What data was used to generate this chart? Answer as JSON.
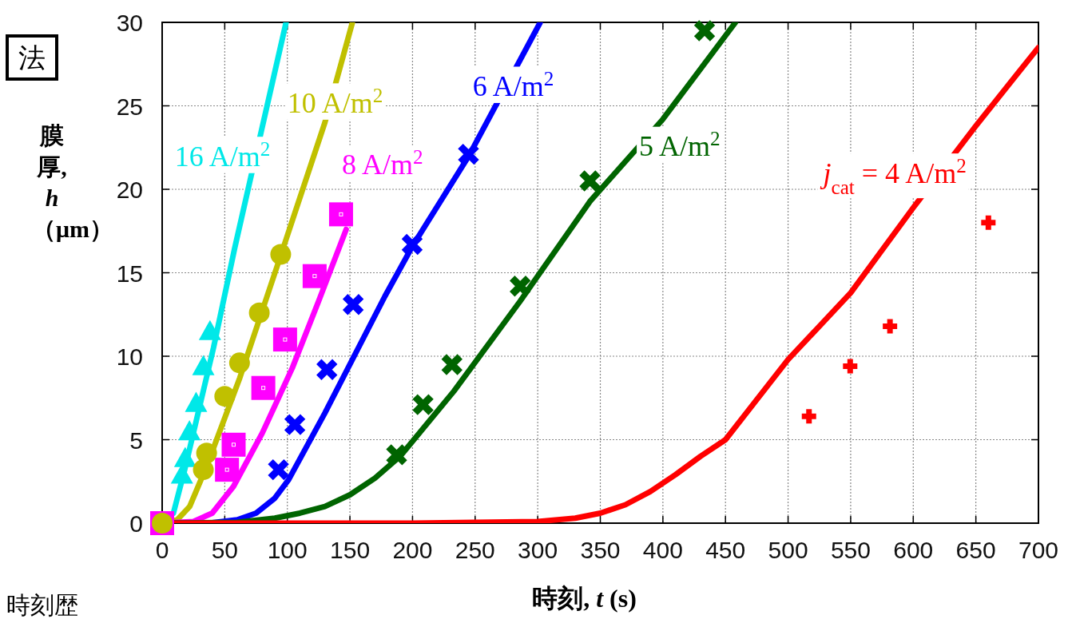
{
  "chart_data": {
    "type": "line",
    "xlabel": "時刻, *t* (s)",
    "ylabel": "膜厚, *h* （μm）",
    "annotations": [
      "法",
      "時刻歴"
    ],
    "xlim": [
      0,
      700
    ],
    "ylim": [
      0,
      30
    ],
    "xticks": [
      0,
      50,
      100,
      150,
      200,
      250,
      300,
      350,
      400,
      450,
      500,
      550,
      600,
      650,
      700
    ],
    "yticks": [
      0,
      5,
      10,
      15,
      20,
      25,
      30
    ],
    "grid": true,
    "series": [
      {
        "name": "16 A/m$^{2}$",
        "color": "#00e8e8",
        "line_style": "solid",
        "marker": "none",
        "x": [
          0,
          9,
          18,
          41,
          58,
          99
        ],
        "values": [
          0,
          0.6,
          3.2,
          10.5,
          16.5,
          30
        ]
      },
      {
        "name": "10 A/m$^{2}$",
        "color": "#c0c000",
        "line_style": "solid",
        "marker": "none",
        "x": [
          0,
          12,
          22,
          35.5,
          62,
          95,
          130,
          152
        ],
        "values": [
          0,
          0.2,
          1.0,
          3.4,
          8.7,
          16.1,
          24,
          30
        ]
      },
      {
        "name": "8 A/m$^{2}$",
        "color": "#ff00ff",
        "line_style": "solid",
        "marker": "none",
        "x": [
          0,
          25,
          40,
          57,
          80,
          104,
          125,
          147
        ],
        "values": [
          0,
          0.1,
          0.6,
          2.2,
          5.4,
          9.3,
          13.3,
          17.6
        ]
      },
      {
        "name": "6 A/m$^{2}$",
        "color": "#0000ff",
        "line_style": "solid",
        "marker": "none",
        "x": [
          0,
          40,
          60,
          75,
          90,
          101,
          130,
          178,
          200,
          245,
          302
        ],
        "values": [
          0,
          0.02,
          0.2,
          0.6,
          1.5,
          2.6,
          6.6,
          13.6,
          16.6,
          22.0,
          30
        ]
      },
      {
        "name": "5 A/m$^{2}$",
        "color": "#006400",
        "line_style": "solid",
        "marker": "none",
        "x": [
          0,
          60,
          90,
          110,
          130,
          150,
          170,
          190,
          233,
          286,
          342,
          400,
          458
        ],
        "values": [
          0,
          0.05,
          0.3,
          0.6,
          1.0,
          1.7,
          2.7,
          4.0,
          7.9,
          13.3,
          19.3,
          24.2,
          30
        ]
      },
      {
        "name": "*j*$_{cat}$ = 4 A/m$^{2}$",
        "color": "#ff0000",
        "line_style": "solid",
        "marker": "none",
        "x": [
          0,
          200,
          300,
          330,
          350,
          370,
          390,
          410,
          430,
          450,
          500,
          550,
          600,
          650,
          700
        ],
        "values": [
          0,
          0,
          0.1,
          0.3,
          0.6,
          1.1,
          1.9,
          2.9,
          4.0,
          5.0,
          9.8,
          13.8,
          18.9,
          23.8,
          28.5
        ]
      },
      {
        "type": "scatter",
        "color": "#00e8e8",
        "marker": "triangle",
        "x": [
          15.8,
          18.4,
          21.8,
          27.1,
          32.9,
          38.2
        ],
        "values": [
          2.9,
          3.9,
          5.5,
          7.2,
          9.4,
          11.5
        ]
      },
      {
        "type": "scatter",
        "color": "#ff00ff",
        "marker": "square",
        "x": [
          0,
          51.8,
          57.1,
          80.8,
          98.2,
          121.8,
          142.9
        ],
        "values": [
          0,
          3.2,
          4.7,
          8.1,
          11.0,
          14.8,
          18.5
        ]
      },
      {
        "type": "scatter",
        "color": "#c0c000",
        "marker": "circle",
        "x": [
          0,
          32.9,
          35.5,
          50,
          61.8,
          77.6,
          94.7
        ],
        "values": [
          0,
          3.2,
          4.2,
          7.6,
          9.6,
          12.6,
          16.1
        ]
      },
      {
        "type": "scatter",
        "color": "#0000ff",
        "marker": "cross",
        "x": [
          92.9,
          106,
          131.6,
          152.6,
          199.7,
          244.7
        ],
        "values": [
          3.2,
          5.9,
          9.2,
          13.1,
          16.7,
          22.1
        ]
      },
      {
        "type": "scatter",
        "color": "#006400",
        "marker": "cross",
        "x": [
          187.3,
          208.4,
          231.5,
          286,
          341.7,
          433.3
        ],
        "values": [
          4.1,
          7.1,
          9.5,
          14.2,
          20.5,
          29.5
        ]
      },
      {
        "type": "scatter",
        "color": "#ff0000",
        "marker": "plus",
        "x": [
          516.7,
          549.6,
          581.4,
          660
        ],
        "values": [
          6.4,
          9.4,
          11.8,
          18.0
        ]
      }
    ]
  }
}
